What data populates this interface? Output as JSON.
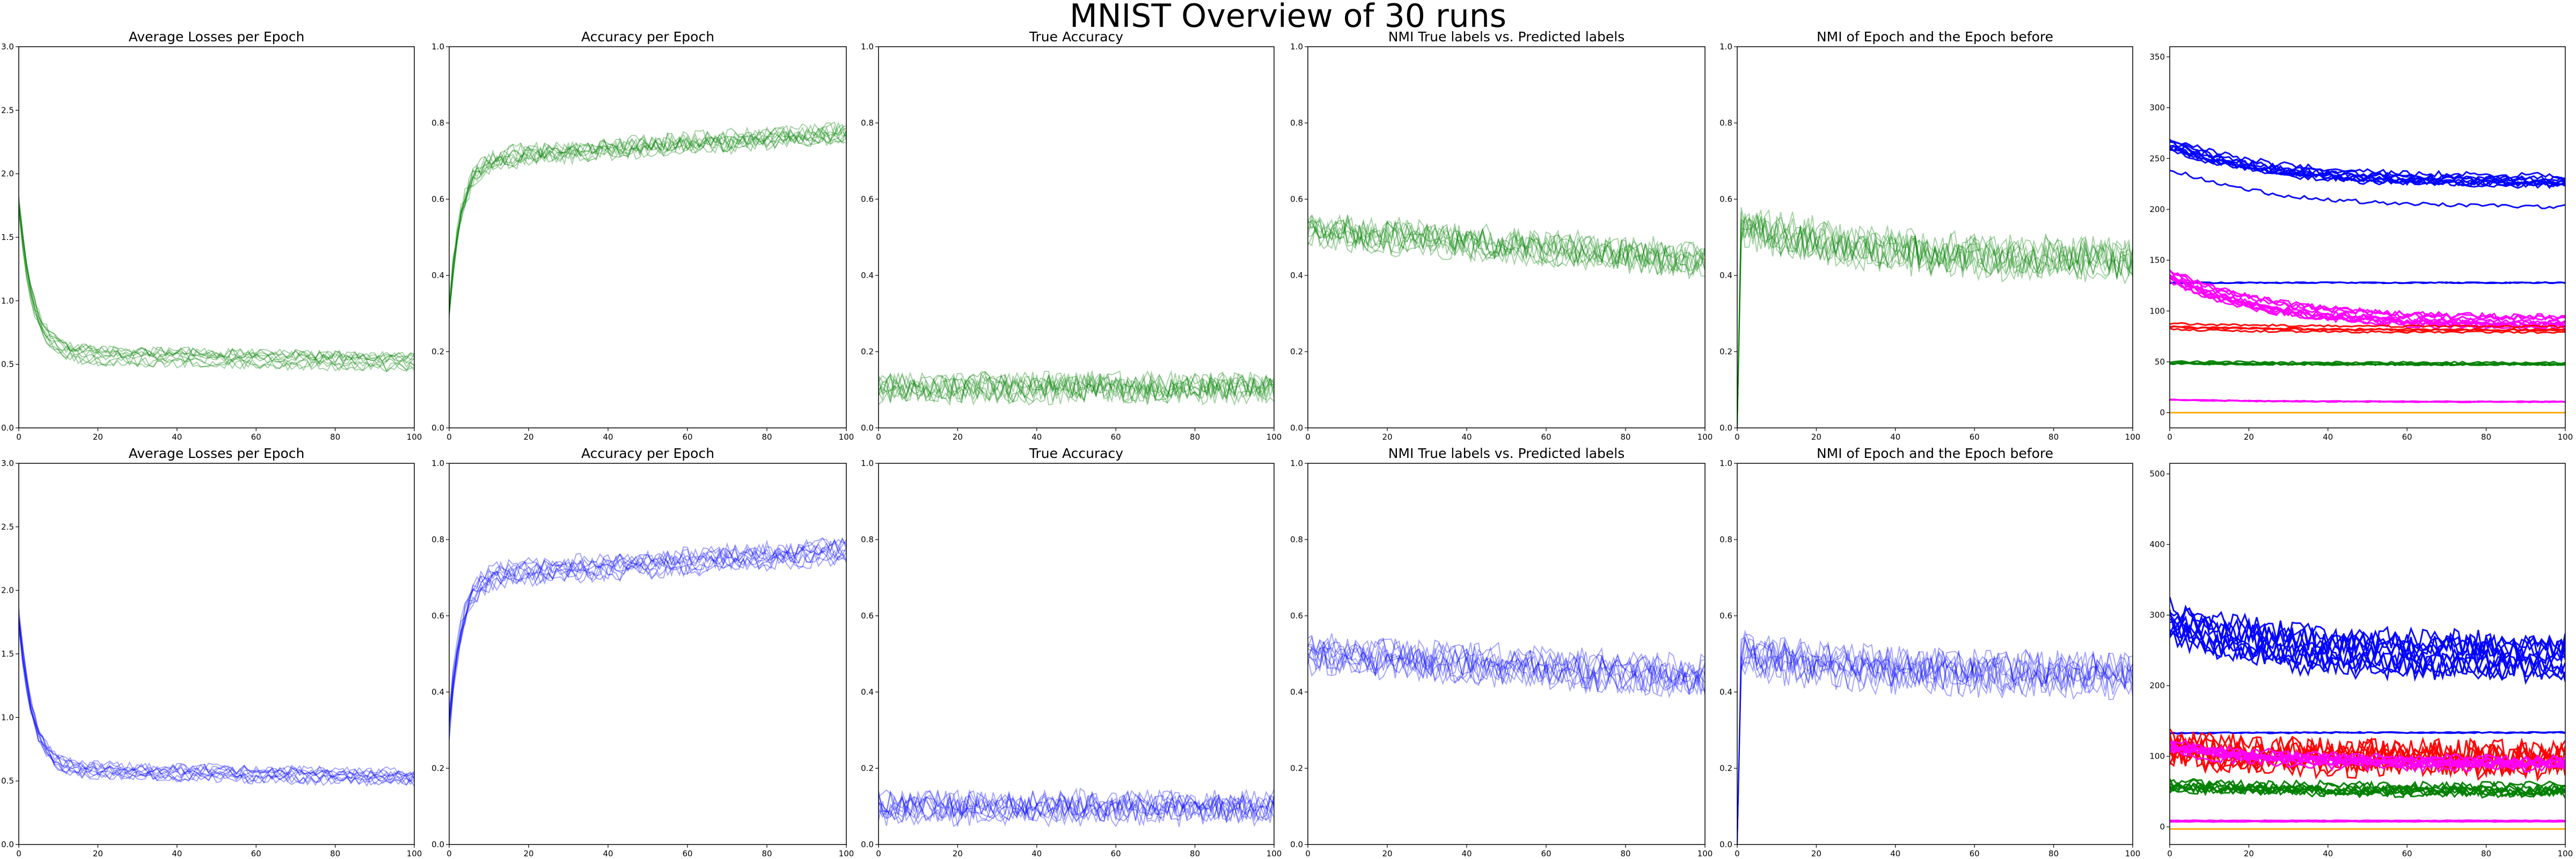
{
  "figure": {
    "title": "MNIST Overview of 30 runs"
  },
  "chart_data": [
    {
      "type": "line",
      "panel": "top-1",
      "title": "Average Losses per Epoch",
      "xlim": [
        0,
        100
      ],
      "ylim": [
        0,
        3.0
      ],
      "xticks": [
        "0",
        "20",
        "40",
        "60",
        "80",
        "100"
      ],
      "yticks": [
        "0.0",
        "0.5",
        "1.0",
        "1.5",
        "2.0",
        "2.5",
        "3.0"
      ],
      "series_color": "#008000",
      "series_count": 10,
      "start": 1.75,
      "end": 0.57,
      "noise": 0.04,
      "shape": "decay-down"
    },
    {
      "type": "line",
      "panel": "top-2",
      "title": "Accuracy per Epoch",
      "xlim": [
        0,
        100
      ],
      "ylim": [
        0,
        1.0
      ],
      "xticks": [
        "0",
        "20",
        "40",
        "60",
        "80",
        "100"
      ],
      "yticks": [
        "0.0",
        "0.2",
        "0.4",
        "0.6",
        "0.8",
        "1.0"
      ],
      "series_color": "#008000",
      "series_count": 10,
      "start": 0.38,
      "end": 0.78,
      "noise": 0.022,
      "shape": "rise"
    },
    {
      "type": "line",
      "panel": "top-3",
      "title": "True Accuracy",
      "xlim": [
        0,
        100
      ],
      "ylim": [
        0,
        1.0
      ],
      "xticks": [
        "0",
        "20",
        "40",
        "60",
        "80",
        "100"
      ],
      "yticks": [
        "0.0",
        "0.2",
        "0.4",
        "0.6",
        "0.8",
        "1.0"
      ],
      "series_color": "#008000",
      "series_count": 10,
      "start": 0.1,
      "end": 0.1,
      "noise": 0.035,
      "shape": "flat"
    },
    {
      "type": "line",
      "panel": "top-4",
      "title": "NMI True labels vs. Predicted labels",
      "xlim": [
        0,
        100
      ],
      "ylim": [
        0,
        1.0
      ],
      "xticks": [
        "0",
        "20",
        "40",
        "60",
        "80",
        "100"
      ],
      "yticks": [
        "0.0",
        "0.2",
        "0.4",
        "0.6",
        "0.8",
        "1.0"
      ],
      "series_color": "#008000",
      "series_count": 10,
      "start": 0.52,
      "end": 0.44,
      "noise": 0.04,
      "shape": "flat"
    },
    {
      "type": "line",
      "panel": "top-5",
      "title": "NMI of Epoch and the Epoch before",
      "xlim": [
        0,
        100
      ],
      "ylim": [
        0,
        1.0
      ],
      "xticks": [
        "0",
        "20",
        "40",
        "60",
        "80",
        "100"
      ],
      "yticks": [
        "0.0",
        "0.2",
        "0.4",
        "0.6",
        "0.8",
        "1.0"
      ],
      "series_color": "#008000",
      "series_count": 10,
      "start": 0.54,
      "end": 0.44,
      "noise": 0.05,
      "shape": "spike-zero"
    },
    {
      "type": "line",
      "panel": "top-6",
      "title": "",
      "xlim": [
        0,
        100
      ],
      "ylim": [
        -15,
        360
      ],
      "xticks": [
        "0",
        "20",
        "40",
        "60",
        "80",
        "100"
      ],
      "yticks": [
        "0",
        "50",
        "100",
        "150",
        "200",
        "250",
        "300",
        "350"
      ],
      "groups": [
        {
          "color": "#0000ff",
          "count": 9,
          "start": 265,
          "end": 228,
          "spread": 7,
          "noise": 3
        },
        {
          "color": "#0000ff",
          "count": 1,
          "start": 240,
          "end": 202,
          "spread": 0,
          "noise": 2
        },
        {
          "color": "#0000ff",
          "count": 2,
          "start": 127,
          "end": 127,
          "spread": 1,
          "noise": 0.6
        },
        {
          "color": "#ff00ff",
          "count": 10,
          "start": 135,
          "end": 88,
          "spread": 6,
          "noise": 3
        },
        {
          "color": "#ff0000",
          "count": 4,
          "start": 85,
          "end": 82,
          "spread": 3,
          "noise": 1
        },
        {
          "color": "#008000",
          "count": 4,
          "start": 50,
          "end": 49,
          "spread": 2,
          "noise": 1
        },
        {
          "color": "#ff00ff",
          "count": 3,
          "start": 12,
          "end": 10,
          "spread": 1,
          "noise": 0.5
        },
        {
          "color": "#ffa500",
          "count": 1,
          "start": 0,
          "end": 0,
          "spread": 0,
          "noise": 0
        }
      ]
    },
    {
      "type": "line",
      "panel": "bottom-1",
      "title": "Average Losses per Epoch",
      "xlim": [
        0,
        100
      ],
      "ylim": [
        0,
        3.0
      ],
      "xticks": [
        "0",
        "20",
        "40",
        "60",
        "80",
        "100"
      ],
      "yticks": [
        "0.0",
        "0.5",
        "1.0",
        "1.5",
        "2.0",
        "2.5",
        "3.0"
      ],
      "series_color": "#0000ff",
      "series_count": 10,
      "start": 1.8,
      "end": 0.6,
      "noise": 0.04,
      "shape": "decay-down"
    },
    {
      "type": "line",
      "panel": "bottom-2",
      "title": "Accuracy per Epoch",
      "xlim": [
        0,
        100
      ],
      "ylim": [
        0,
        1.0
      ],
      "xticks": [
        "0",
        "20",
        "40",
        "60",
        "80",
        "100"
      ],
      "yticks": [
        "0.0",
        "0.2",
        "0.4",
        "0.6",
        "0.8",
        "1.0"
      ],
      "series_color": "#0000ff",
      "series_count": 10,
      "start": 0.38,
      "end": 0.77,
      "noise": 0.022,
      "shape": "rise"
    },
    {
      "type": "line",
      "panel": "bottom-3",
      "title": "True Accuracy",
      "xlim": [
        0,
        100
      ],
      "ylim": [
        0,
        1.0
      ],
      "xticks": [
        "0",
        "20",
        "40",
        "60",
        "80",
        "100"
      ],
      "yticks": [
        "0.0",
        "0.2",
        "0.4",
        "0.6",
        "0.8",
        "1.0"
      ],
      "series_color": "#0000ff",
      "series_count": 10,
      "start": 0.1,
      "end": 0.1,
      "noise": 0.035,
      "shape": "flat"
    },
    {
      "type": "line",
      "panel": "bottom-4",
      "title": "NMI True labels vs. Predicted labels",
      "xlim": [
        0,
        100
      ],
      "ylim": [
        0,
        1.0
      ],
      "xticks": [
        "0",
        "20",
        "40",
        "60",
        "80",
        "100"
      ],
      "yticks": [
        "0.0",
        "0.2",
        "0.4",
        "0.6",
        "0.8",
        "1.0"
      ],
      "series_color": "#0000ff",
      "series_count": 10,
      "start": 0.5,
      "end": 0.44,
      "noise": 0.04,
      "shape": "flat"
    },
    {
      "type": "line",
      "panel": "bottom-5",
      "title": "NMI of Epoch and the Epoch before",
      "xlim": [
        0,
        100
      ],
      "ylim": [
        0,
        1.0
      ],
      "xticks": [
        "0",
        "20",
        "40",
        "60",
        "80",
        "100"
      ],
      "yticks": [
        "0.0",
        "0.2",
        "0.4",
        "0.6",
        "0.8",
        "1.0"
      ],
      "series_color": "#0000ff",
      "series_count": 10,
      "start": 0.5,
      "end": 0.44,
      "noise": 0.05,
      "shape": "spike-zero"
    },
    {
      "type": "line",
      "panel": "bottom-6",
      "title": "",
      "xlim": [
        0,
        100
      ],
      "ylim": [
        -25,
        515
      ],
      "xticks": [
        "0",
        "20",
        "40",
        "60",
        "80",
        "100"
      ],
      "yticks": [
        "0",
        "100",
        "200",
        "300",
        "400",
        "500"
      ],
      "groups": [
        {
          "color": "#0000ff",
          "count": 10,
          "start": 290,
          "end": 240,
          "spread": 20,
          "noise": 18
        },
        {
          "color": "#0000ff",
          "count": 2,
          "start": 132,
          "end": 133,
          "spread": 1,
          "noise": 1
        },
        {
          "color": "#ff0000",
          "count": 8,
          "start": 110,
          "end": 95,
          "spread": 10,
          "noise": 20
        },
        {
          "color": "#ff00ff",
          "count": 10,
          "start": 115,
          "end": 90,
          "spread": 8,
          "noise": 6
        },
        {
          "color": "#008000",
          "count": 8,
          "start": 62,
          "end": 55,
          "spread": 8,
          "noise": 7
        },
        {
          "color": "#ff00ff",
          "count": 3,
          "start": 8,
          "end": 8,
          "spread": 1,
          "noise": 0.5
        },
        {
          "color": "#ffa500",
          "count": 1,
          "start": -3,
          "end": -3,
          "spread": 0,
          "noise": 0
        }
      ]
    }
  ]
}
